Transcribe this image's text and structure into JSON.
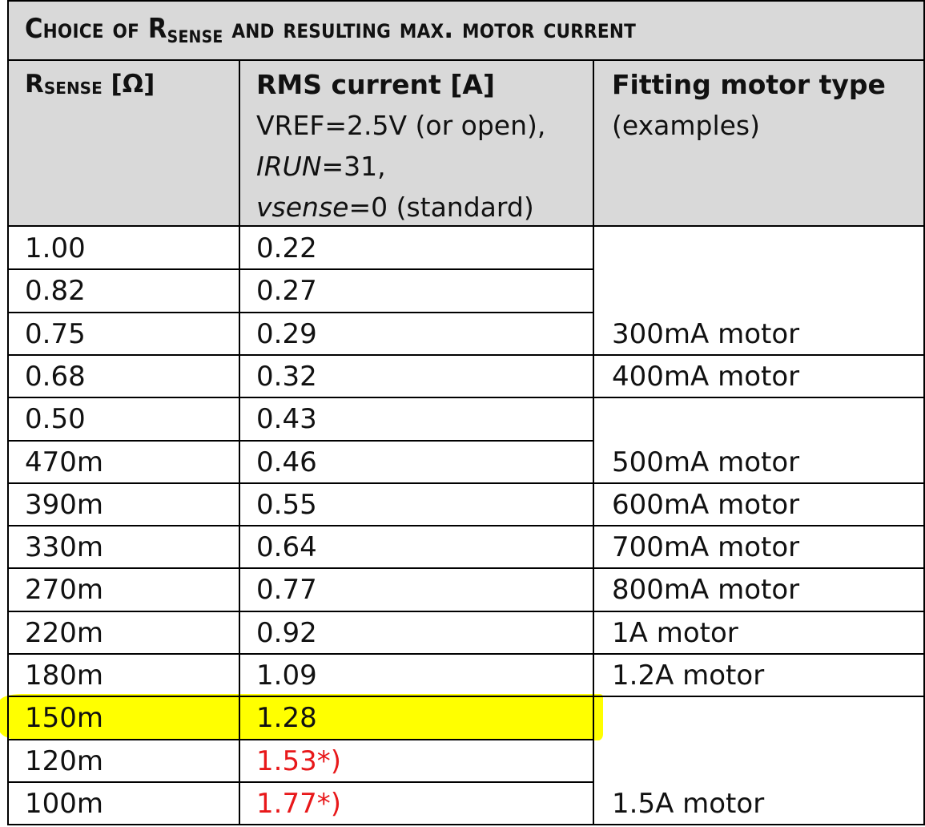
{
  "caption": {
    "prefix": "Choice of R",
    "sub": "SENSE",
    "suffix": " and resulting max. motor current"
  },
  "headers": {
    "rsense": {
      "main": "R",
      "sub": "SENSE",
      "unit": " [Ω]"
    },
    "rms": {
      "title": "RMS current [A]",
      "line2": "VREF=2.5V (or open),",
      "line3_italic": "IRUN",
      "line3_rest": "=31,",
      "line4_italic": "vsense",
      "line4_rest": "=0 (standard)"
    },
    "fitting": {
      "title": "Fitting motor type",
      "sub": "(examples)"
    }
  },
  "rows": [
    {
      "rsense": "1.00",
      "rms": "0.22",
      "motor": ""
    },
    {
      "rsense": "0.82",
      "rms": "0.27",
      "motor": ""
    },
    {
      "rsense": "0.75",
      "rms": "0.29",
      "motor": "300mA motor"
    },
    {
      "rsense": "0.68",
      "rms": "0.32",
      "motor": "400mA motor"
    },
    {
      "rsense": "0.50",
      "rms": "0.43",
      "motor": ""
    },
    {
      "rsense": "470m",
      "rms": "0.46",
      "motor": "500mA motor"
    },
    {
      "rsense": "390m",
      "rms": "0.55",
      "motor": "600mA motor"
    },
    {
      "rsense": "330m",
      "rms": "0.64",
      "motor": "700mA motor"
    },
    {
      "rsense": "270m",
      "rms": "0.77",
      "motor": "800mA motor"
    },
    {
      "rsense": "220m",
      "rms": "0.92",
      "motor": "1A motor"
    },
    {
      "rsense": "180m",
      "rms": "1.09",
      "motor": "1.2A motor"
    },
    {
      "rsense": "150m",
      "rms": "1.28",
      "motor": "",
      "highlight": true
    },
    {
      "rsense": "120m",
      "rms": "1.53*)",
      "motor": "",
      "warning": true
    },
    {
      "rsense": "100m",
      "rms": "1.77*)",
      "motor": "1.5A motor",
      "warning": true
    }
  ],
  "colors": {
    "header_bg": "#d9d9d9",
    "highlight": "#ffff00",
    "warning_text": "#e8181a"
  }
}
